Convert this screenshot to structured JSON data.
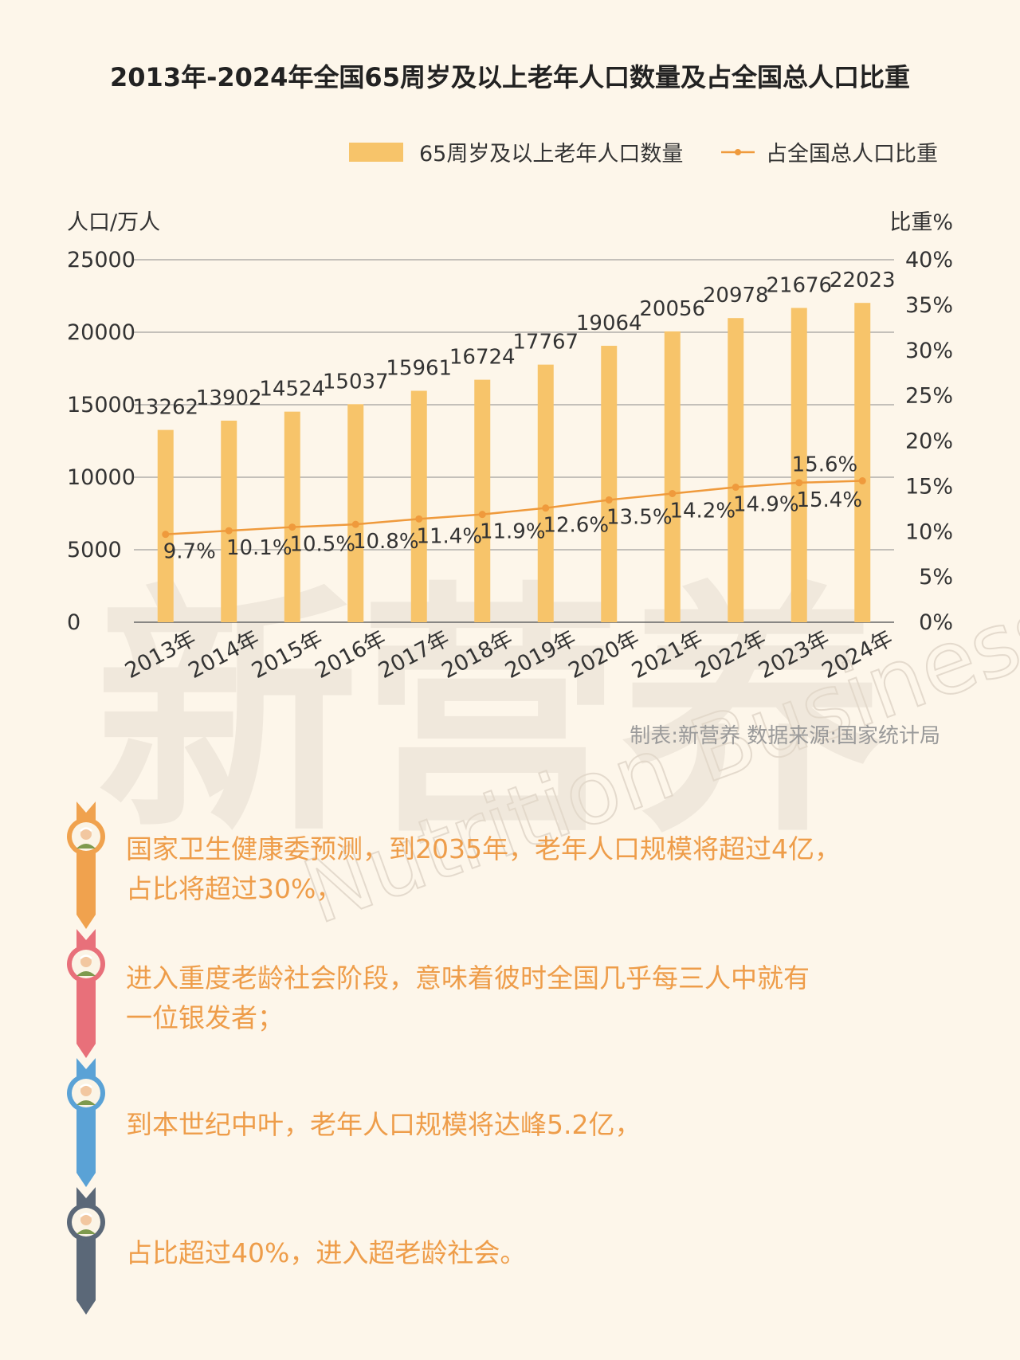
{
  "chart_data": {
    "type": "bar",
    "title": "2013年-2024年全国65周岁及以上老年人口数量及占全国总人口比重",
    "categories": [
      "2013年",
      "2014年",
      "2015年",
      "2016年",
      "2017年",
      "2018年",
      "2019年",
      "2020年",
      "2021年",
      "2022年",
      "2023年",
      "2024年"
    ],
    "series": [
      {
        "name": "65周岁及以上老年人口数量",
        "type": "bar",
        "axis": "left",
        "color": "#f7c46a",
        "values": [
          13262,
          13902,
          14524,
          15037,
          15961,
          16724,
          17767,
          19064,
          20056,
          20978,
          21676,
          22023
        ]
      },
      {
        "name": "占全国总人口比重",
        "type": "line",
        "axis": "right",
        "color": "#ef9a3c",
        "values": [
          9.7,
          10.1,
          10.5,
          10.8,
          11.4,
          11.9,
          12.6,
          13.5,
          14.2,
          14.9,
          15.4,
          15.6
        ]
      }
    ],
    "bar_labels": [
      "13262",
      "13902",
      "14524",
      "15037",
      "15961",
      "16724",
      "17767",
      "19064",
      "20056",
      "20978",
      "21676",
      "22023"
    ],
    "line_labels": [
      "9.7%",
      "10.1%",
      "10.5%",
      "10.8%",
      "11.4%",
      "11.9%",
      "12.6%",
      "13.5%",
      "14.2%",
      "14.9%",
      "15.4%",
      "15.6%"
    ],
    "ylabel": "人口/万人",
    "ylabel_right": "比重%",
    "ylim": [
      0,
      25000
    ],
    "ylim_right": [
      0,
      40
    ],
    "yticks": [
      "0",
      "5000",
      "10000",
      "15000",
      "20000",
      "25000"
    ],
    "yticks_right": [
      "0%",
      "5%",
      "10%",
      "15%",
      "20%",
      "25%",
      "30%",
      "35%",
      "40%"
    ],
    "grid": true,
    "legend": "top-right"
  },
  "source_note": "制表:新营养  数据来源:国家统计局",
  "watermark": {
    "brand": "新营养",
    "latin": "Nutrition Business"
  },
  "bullets": [
    {
      "lines": [
        "国家卫生健康委预测，到2035年，老年人口规模将超过4亿，",
        "占比将超过30%，"
      ],
      "color": "#f0a24e",
      "ring": "#f0a24e",
      "icon": "elderly-person-avatar"
    },
    {
      "lines": [
        "进入重度老龄社会阶段，意味着彼时全国几乎每三人中就有",
        "一位银发者；"
      ],
      "color": "#e8707a",
      "ring": "#e8707a",
      "icon": "elderly-person-avatar"
    },
    {
      "lines": [
        "到本世纪中叶，老年人口规模将达峰5.2亿，"
      ],
      "color": "#5aa2d6",
      "ring": "#5aa2d6",
      "icon": "elderly-person-avatar"
    },
    {
      "lines": [
        "占比超过40%，进入超老龄社会。"
      ],
      "color": "#5b6878",
      "ring": "#5b6878",
      "icon": "elderly-person-avatar"
    }
  ]
}
